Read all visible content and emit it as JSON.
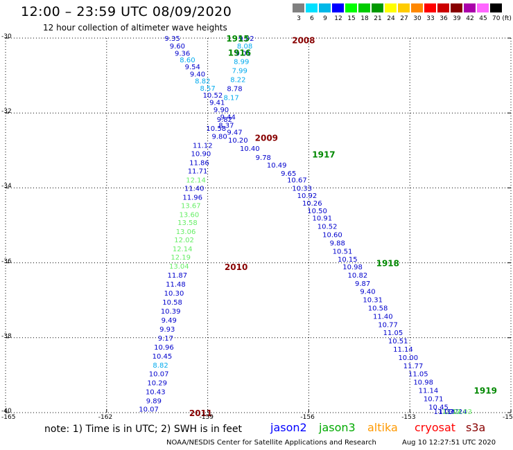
{
  "header": {
    "title": "12:00 – 23:59 UTC 08/09/2020",
    "subtitle": "12 hour collection of altimeter wave heights"
  },
  "colorbar": {
    "labels": [
      "3",
      "6",
      "9",
      "12",
      "15",
      "18",
      "21",
      "24",
      "27",
      "30",
      "33",
      "36",
      "39",
      "42",
      "45",
      "70 (ft)"
    ],
    "colors": [
      "#808080",
      "#00e0ff",
      "#00b8e8",
      "#0000ff",
      "#00ff00",
      "#00cc00",
      "#009900",
      "#ffff00",
      "#ffcc00",
      "#ff8800",
      "#ff0000",
      "#cc0000",
      "#880000",
      "#aa00aa",
      "#ff66ff",
      "#000000"
    ]
  },
  "axes": {
    "lat_labels": [
      "-30",
      "-32",
      "-34",
      "-36",
      "-38",
      "-40"
    ],
    "lon_labels": [
      "-165",
      "-162",
      "-159",
      "-156",
      "-153",
      "-15"
    ]
  },
  "map": {
    "lon_range": [
      -165,
      -150
    ],
    "lat_range": [
      -40,
      -30
    ],
    "value_colors": {
      "c1": "#0000cc",
      "c2": "#00aaee",
      "c3": "#66ee66"
    },
    "tracks": [
      {
        "name": "track-a",
        "points": [
          {
            "lon": -160.05,
            "lat": -30.0,
            "v": "9.35",
            "c": "c1"
          },
          {
            "lon": -159.9,
            "lat": -30.2,
            "v": "9.60",
            "c": "c1"
          },
          {
            "lon": -159.75,
            "lat": -30.4,
            "v": "9.36",
            "c": "c1"
          },
          {
            "lon": -159.6,
            "lat": -30.57,
            "v": "8.60",
            "c": "c2"
          },
          {
            "lon": -159.45,
            "lat": -30.76,
            "v": "9.54",
            "c": "c1"
          },
          {
            "lon": -159.3,
            "lat": -30.95,
            "v": "9.40",
            "c": "c1"
          },
          {
            "lon": -159.15,
            "lat": -31.14,
            "v": "8.82",
            "c": "c2"
          },
          {
            "lon": -159.0,
            "lat": -31.33,
            "v": "8.57",
            "c": "c2"
          },
          {
            "lon": -158.85,
            "lat": -31.52,
            "v": "10.52",
            "c": "c1"
          },
          {
            "lon": -158.72,
            "lat": -31.71,
            "v": "9.41",
            "c": "c1"
          },
          {
            "lon": -158.6,
            "lat": -31.9,
            "v": "9.90",
            "c": "c1"
          },
          {
            "lon": -158.5,
            "lat": -32.16,
            "v": "9.82",
            "c": "c1"
          },
          {
            "lon": -158.75,
            "lat": -32.4,
            "v": "10.58",
            "c": "c1"
          },
          {
            "lon": -158.65,
            "lat": -32.62,
            "v": "9.80",
            "c": "c1"
          },
          {
            "lon": -159.15,
            "lat": -32.86,
            "v": "11.12",
            "c": "c1"
          },
          {
            "lon": -159.2,
            "lat": -33.08,
            "v": "10.90",
            "c": "c1"
          },
          {
            "lon": -159.25,
            "lat": -33.32,
            "v": "11.86",
            "c": "c1"
          },
          {
            "lon": -159.3,
            "lat": -33.54,
            "v": "11.71",
            "c": "c1"
          },
          {
            "lon": -159.35,
            "lat": -33.78,
            "v": "12.14",
            "c": "c3"
          },
          {
            "lon": -159.4,
            "lat": -34.0,
            "v": "11.40",
            "c": "c1"
          },
          {
            "lon": -159.45,
            "lat": -34.24,
            "v": "11.96",
            "c": "c1"
          },
          {
            "lon": -159.5,
            "lat": -34.46,
            "v": "13.67",
            "c": "c3"
          },
          {
            "lon": -159.55,
            "lat": -34.7,
            "v": "13.60",
            "c": "c3"
          },
          {
            "lon": -159.6,
            "lat": -34.92,
            "v": "13.58",
            "c": "c3"
          },
          {
            "lon": -159.65,
            "lat": -35.16,
            "v": "13.06",
            "c": "c3"
          },
          {
            "lon": -159.7,
            "lat": -35.38,
            "v": "12.02",
            "c": "c3"
          },
          {
            "lon": -159.75,
            "lat": -35.62,
            "v": "12.14",
            "c": "c3"
          },
          {
            "lon": -159.8,
            "lat": -35.84,
            "v": "12.19",
            "c": "c3"
          },
          {
            "lon": -159.85,
            "lat": -36.08,
            "v": "13.04",
            "c": "c3"
          },
          {
            "lon": -159.9,
            "lat": -36.32,
            "v": "11.87",
            "c": "c1"
          },
          {
            "lon": -159.95,
            "lat": -36.56,
            "v": "11.48",
            "c": "c1"
          },
          {
            "lon": -160.0,
            "lat": -36.8,
            "v": "10.30",
            "c": "c1"
          },
          {
            "lon": -160.05,
            "lat": -37.04,
            "v": "10.58",
            "c": "c1"
          },
          {
            "lon": -160.1,
            "lat": -37.28,
            "v": "10.39",
            "c": "c1"
          },
          {
            "lon": -160.15,
            "lat": -37.52,
            "v": "9.49",
            "c": "c1"
          },
          {
            "lon": -160.2,
            "lat": -37.76,
            "v": "9.93",
            "c": "c1"
          },
          {
            "lon": -160.25,
            "lat": -38.0,
            "v": "9.17",
            "c": "c1"
          },
          {
            "lon": -160.3,
            "lat": -38.24,
            "v": "10.96",
            "c": "c1"
          },
          {
            "lon": -160.35,
            "lat": -38.48,
            "v": "10.45",
            "c": "c1"
          },
          {
            "lon": -160.4,
            "lat": -38.72,
            "v": "8.82",
            "c": "c2"
          },
          {
            "lon": -160.45,
            "lat": -38.96,
            "v": "10.07",
            "c": "c1"
          },
          {
            "lon": -160.5,
            "lat": -39.2,
            "v": "10.29",
            "c": "c1"
          },
          {
            "lon": -160.55,
            "lat": -39.44,
            "v": "10.43",
            "c": "c1"
          },
          {
            "lon": -160.6,
            "lat": -39.68,
            "v": "9.89",
            "c": "c1"
          },
          {
            "lon": -160.75,
            "lat": -39.9,
            "v": "10.07",
            "c": "c1"
          }
        ]
      },
      {
        "name": "track-b",
        "points": [
          {
            "lon": -157.85,
            "lat": -30.0,
            "v": "9.02",
            "c": "c1"
          },
          {
            "lon": -157.9,
            "lat": -30.2,
            "v": "8.08",
            "c": "c2"
          },
          {
            "lon": -157.95,
            "lat": -30.4,
            "v": "9.01",
            "c": "c1"
          },
          {
            "lon": -158.0,
            "lat": -30.62,
            "v": "8.99",
            "c": "c2"
          },
          {
            "lon": -158.05,
            "lat": -30.86,
            "v": "7.99",
            "c": "c2"
          },
          {
            "lon": -158.1,
            "lat": -31.1,
            "v": "8.22",
            "c": "c2"
          },
          {
            "lon": -158.2,
            "lat": -31.34,
            "v": "8.78",
            "c": "c1"
          },
          {
            "lon": -158.3,
            "lat": -31.58,
            "v": "8.17",
            "c": "c2"
          },
          {
            "lon": -158.4,
            "lat": -32.1,
            "v": "9.44",
            "c": "c1"
          },
          {
            "lon": -158.45,
            "lat": -32.32,
            "v": "8.37",
            "c": "c1"
          },
          {
            "lon": -158.2,
            "lat": -32.5,
            "v": "9.47",
            "c": "c1"
          },
          {
            "lon": -158.1,
            "lat": -32.72,
            "v": "10.20",
            "c": "c1"
          },
          {
            "lon": -157.75,
            "lat": -32.94,
            "v": "10.40",
            "c": "c1"
          },
          {
            "lon": -157.35,
            "lat": -33.18,
            "v": "9.78",
            "c": "c1"
          },
          {
            "lon": -156.95,
            "lat": -33.38,
            "v": "10.49",
            "c": "c1"
          },
          {
            "lon": -156.6,
            "lat": -33.6,
            "v": "9.65",
            "c": "c1"
          },
          {
            "lon": -156.35,
            "lat": -33.78,
            "v": "10.67",
            "c": "c1"
          },
          {
            "lon": -156.2,
            "lat": -34.0,
            "v": "10.33",
            "c": "c1"
          },
          {
            "lon": -156.05,
            "lat": -34.2,
            "v": "10.92",
            "c": "c1"
          },
          {
            "lon": -155.9,
            "lat": -34.4,
            "v": "10.26",
            "c": "c1"
          },
          {
            "lon": -155.75,
            "lat": -34.6,
            "v": "10.50",
            "c": "c1"
          },
          {
            "lon": -155.6,
            "lat": -34.8,
            "v": "10.91",
            "c": "c1"
          },
          {
            "lon": -155.45,
            "lat": -35.02,
            "v": "10.52",
            "c": "c1"
          },
          {
            "lon": -155.3,
            "lat": -35.24,
            "v": "10.60",
            "c": "c1"
          },
          {
            "lon": -155.15,
            "lat": -35.46,
            "v": "9.88",
            "c": "c1"
          },
          {
            "lon": -155.0,
            "lat": -35.68,
            "v": "10.51",
            "c": "c1"
          },
          {
            "lon": -154.85,
            "lat": -35.9,
            "v": "10.15",
            "c": "c1"
          },
          {
            "lon": -154.7,
            "lat": -36.1,
            "v": "10.98",
            "c": "c1"
          },
          {
            "lon": -154.55,
            "lat": -36.32,
            "v": "10.82",
            "c": "c1"
          },
          {
            "lon": -154.4,
            "lat": -36.54,
            "v": "9.87",
            "c": "c1"
          },
          {
            "lon": -154.25,
            "lat": -36.76,
            "v": "9.40",
            "c": "c1"
          },
          {
            "lon": -154.1,
            "lat": -36.98,
            "v": "10.31",
            "c": "c1"
          },
          {
            "lon": -153.95,
            "lat": -37.2,
            "v": "10.58",
            "c": "c1"
          },
          {
            "lon": -153.8,
            "lat": -37.42,
            "v": "11.40",
            "c": "c1"
          },
          {
            "lon": -153.65,
            "lat": -37.64,
            "v": "10.77",
            "c": "c1"
          },
          {
            "lon": -153.5,
            "lat": -37.86,
            "v": "11.05",
            "c": "c1"
          },
          {
            "lon": -153.35,
            "lat": -38.08,
            "v": "10.51",
            "c": "c1"
          },
          {
            "lon": -153.2,
            "lat": -38.3,
            "v": "11.14",
            "c": "c1"
          },
          {
            "lon": -153.05,
            "lat": -38.52,
            "v": "10.00",
            "c": "c1"
          },
          {
            "lon": -152.9,
            "lat": -38.74,
            "v": "11.77",
            "c": "c1"
          },
          {
            "lon": -152.75,
            "lat": -38.96,
            "v": "11.05",
            "c": "c1"
          },
          {
            "lon": -152.6,
            "lat": -39.18,
            "v": "10.98",
            "c": "c1"
          },
          {
            "lon": -152.45,
            "lat": -39.4,
            "v": "11.14",
            "c": "c1"
          },
          {
            "lon": -152.3,
            "lat": -39.62,
            "v": "10.71",
            "c": "c1"
          },
          {
            "lon": -152.15,
            "lat": -39.84,
            "v": "10.45",
            "c": "c1"
          },
          {
            "lon": -152.0,
            "lat": -40.06,
            "v": "11.03",
            "c": "c1"
          },
          {
            "lon": -151.85,
            "lat": -40.28,
            "v": "11.27",
            "c": "c1"
          },
          {
            "lon": -151.75,
            "lat": -40.5,
            "v": "12.04",
            "c": "c3"
          },
          {
            "lon": -151.6,
            "lat": -40.72,
            "v": "11.24",
            "c": "c1"
          },
          {
            "lon": -151.45,
            "lat": -40.94,
            "v": "12.03",
            "c": "c3"
          }
        ]
      }
    ],
    "time_labels": [
      {
        "text": "1915",
        "lon": -158.45,
        "lat": -30.0,
        "color": "#008800"
      },
      {
        "text": "1916",
        "lon": -158.4,
        "lat": -30.38,
        "color": "#008800"
      },
      {
        "text": "2008",
        "lon": -156.5,
        "lat": -30.05,
        "color": "#880000"
      },
      {
        "text": "2009",
        "lon": -157.6,
        "lat": -32.65,
        "color": "#880000"
      },
      {
        "text": "1917",
        "lon": -155.9,
        "lat": -33.1,
        "color": "#008800"
      },
      {
        "text": "2010",
        "lon": -158.5,
        "lat": -36.1,
        "color": "#880000"
      },
      {
        "text": "1918",
        "lon": -154.0,
        "lat": -36.0,
        "color": "#008800"
      },
      {
        "text": "1919",
        "lon": -151.1,
        "lat": -39.4,
        "color": "#008800"
      },
      {
        "text": "2011",
        "lon": -159.55,
        "lat": -40.0,
        "color": "#880000"
      }
    ]
  },
  "footer": {
    "note": "note:  1) Time is in UTC;  2) SWH is in feet",
    "legend": [
      {
        "name": "jason2",
        "color": "#0000ff"
      },
      {
        "name": "jason3",
        "color": "#00aa00"
      },
      {
        "name": "altika",
        "color": "#ff9900"
      },
      {
        "name": "cryosat",
        "color": "#ff0000"
      },
      {
        "name": "s3a",
        "color": "#880000"
      }
    ],
    "credit": "NOAA/NESDIS Center for Satellite Applications and Research",
    "timestamp": "Aug 10 12:27:51 UTC 2020"
  }
}
